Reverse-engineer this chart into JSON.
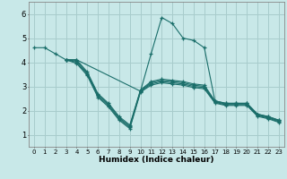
{
  "xlabel": "Humidex (Indice chaleur)",
  "bg_color": "#c8e8e8",
  "grid_color": "#a8cccc",
  "line_color": "#1a6e6a",
  "xlim": [
    -0.5,
    23.5
  ],
  "ylim": [
    0.5,
    6.5
  ],
  "xticks": [
    0,
    1,
    2,
    3,
    4,
    5,
    6,
    7,
    8,
    9,
    10,
    11,
    12,
    13,
    14,
    15,
    16,
    17,
    18,
    19,
    20,
    21,
    22,
    23
  ],
  "yticks": [
    1,
    2,
    3,
    4,
    5,
    6
  ],
  "lines": [
    {
      "x": [
        0,
        1,
        2,
        3,
        4,
        10,
        11,
        12,
        13,
        14,
        15,
        16,
        17,
        18,
        19,
        20,
        21,
        22,
        23
      ],
      "y": [
        4.6,
        4.6,
        4.35,
        4.1,
        4.1,
        2.8,
        4.35,
        5.85,
        5.6,
        5.0,
        4.9,
        4.6,
        2.4,
        2.3,
        2.3,
        2.3,
        1.85,
        1.75,
        1.6
      ]
    },
    {
      "x": [
        3,
        4,
        5,
        6,
        7,
        8,
        9,
        10,
        11,
        12,
        13,
        14,
        15,
        16,
        17,
        18,
        19,
        20,
        21,
        22,
        23
      ],
      "y": [
        4.1,
        4.1,
        3.6,
        2.7,
        2.3,
        1.75,
        1.4,
        2.85,
        3.2,
        3.3,
        3.25,
        3.2,
        3.1,
        3.05,
        2.4,
        2.3,
        2.3,
        2.3,
        1.85,
        1.75,
        1.6
      ]
    },
    {
      "x": [
        3,
        4,
        5,
        6,
        7,
        8,
        9,
        10,
        11,
        12,
        13,
        14,
        15,
        16,
        17,
        18,
        19,
        20,
        21,
        22,
        23
      ],
      "y": [
        4.1,
        4.05,
        3.55,
        2.65,
        2.25,
        1.7,
        1.35,
        2.82,
        3.15,
        3.25,
        3.2,
        3.15,
        3.05,
        3.0,
        2.37,
        2.27,
        2.27,
        2.27,
        1.82,
        1.72,
        1.57
      ]
    },
    {
      "x": [
        3,
        4,
        5,
        6,
        7,
        8,
        9,
        10,
        11,
        12,
        13,
        14,
        15,
        16,
        17,
        18,
        19,
        20,
        21,
        22,
        23
      ],
      "y": [
        4.1,
        4.0,
        3.5,
        2.6,
        2.2,
        1.65,
        1.3,
        2.79,
        3.1,
        3.2,
        3.15,
        3.1,
        3.0,
        2.95,
        2.34,
        2.24,
        2.24,
        2.24,
        1.79,
        1.69,
        1.54
      ]
    },
    {
      "x": [
        3,
        4,
        5,
        6,
        7,
        8,
        9,
        10,
        11,
        12,
        13,
        14,
        15,
        16,
        17,
        18,
        19,
        20,
        21,
        22,
        23
      ],
      "y": [
        4.1,
        3.95,
        3.45,
        2.55,
        2.15,
        1.6,
        1.25,
        2.76,
        3.05,
        3.15,
        3.1,
        3.05,
        2.95,
        2.9,
        2.31,
        2.21,
        2.21,
        2.21,
        1.76,
        1.66,
        1.51
      ]
    }
  ]
}
